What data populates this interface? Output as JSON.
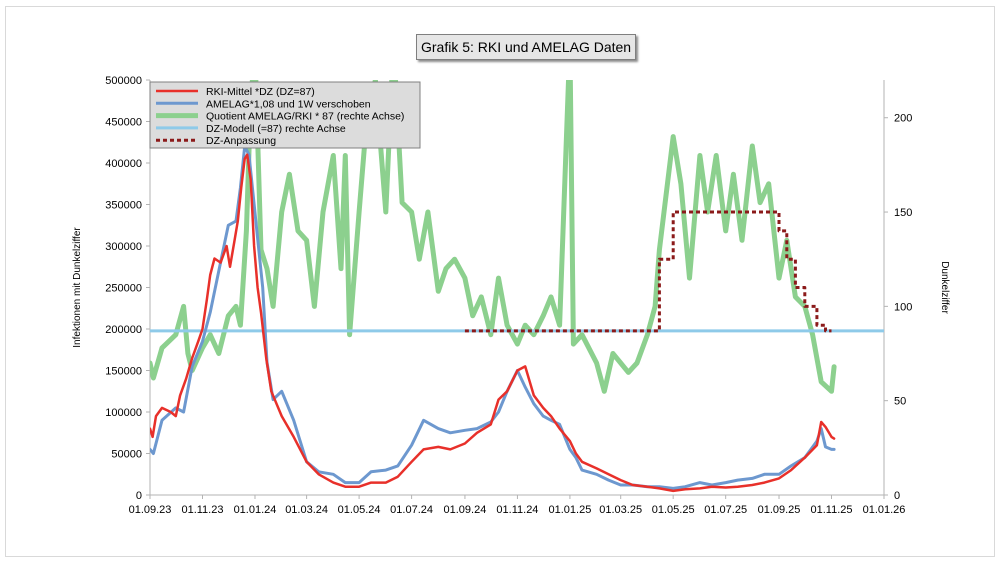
{
  "chart_data": {
    "type": "line",
    "title": "Grafik 5: RKI und AMELAG Daten",
    "ylabel": "Infektionen  mit Dunkelziffer",
    "y2label": "Dunkelziffer",
    "ylim": [
      0,
      500000
    ],
    "y2lim": [
      0,
      220
    ],
    "y_ticks": [
      "0",
      "50000",
      "100000",
      "150000",
      "200000",
      "250000",
      "300000",
      "350000",
      "400000",
      "450000",
      "500000"
    ],
    "y2_ticks": [
      "0",
      "50",
      "100",
      "150",
      "200"
    ],
    "x_ticks": [
      "01.09.23",
      "01.11.23",
      "01.01.24",
      "01.03.24",
      "01.05.24",
      "01.07.24",
      "01.09.24",
      "01.11.24",
      "01.01.25",
      "01.03.25",
      "01.05.25",
      "01.07.25",
      "01.09.25",
      "01.11.25",
      "01.01.26"
    ],
    "xlim": [
      "01.09.23",
      "01.01.26"
    ],
    "grid": false,
    "legend_position": "top-left",
    "series": [
      {
        "name": "RKI-Mittel *DZ (DZ=87)",
        "axis": "left",
        "color": "#e8302a",
        "style": "solid",
        "points": [
          [
            "01.09.23",
            80000
          ],
          [
            "04.09.23",
            70000
          ],
          [
            "08.09.23",
            95000
          ],
          [
            "15.09.23",
            105000
          ],
          [
            "25.09.23",
            100000
          ],
          [
            "01.10.23",
            95000
          ],
          [
            "06.10.23",
            120000
          ],
          [
            "13.10.23",
            140000
          ],
          [
            "20.10.23",
            165000
          ],
          [
            "27.10.23",
            185000
          ],
          [
            "01.11.23",
            200000
          ],
          [
            "06.11.23",
            235000
          ],
          [
            "10.11.23",
            265000
          ],
          [
            "15.11.23",
            285000
          ],
          [
            "22.11.23",
            280000
          ],
          [
            "29.11.23",
            300000
          ],
          [
            "03.12.23",
            275000
          ],
          [
            "08.12.23",
            305000
          ],
          [
            "12.12.23",
            330000
          ],
          [
            "16.12.23",
            370000
          ],
          [
            "20.12.23",
            405000
          ],
          [
            "23.12.23",
            410000
          ],
          [
            "27.12.23",
            380000
          ],
          [
            "31.12.23",
            300000
          ],
          [
            "04.01.24",
            250000
          ],
          [
            "08.01.24",
            220000
          ],
          [
            "14.01.24",
            165000
          ],
          [
            "20.01.24",
            125000
          ],
          [
            "01.02.24",
            95000
          ],
          [
            "15.02.24",
            70000
          ],
          [
            "01.03.24",
            40000
          ],
          [
            "15.03.24",
            25000
          ],
          [
            "01.04.24",
            15000
          ],
          [
            "15.04.24",
            10000
          ],
          [
            "01.05.24",
            10000
          ],
          [
            "15.05.24",
            15000
          ],
          [
            "01.06.24",
            15000
          ],
          [
            "15.06.24",
            22000
          ],
          [
            "01.07.24",
            40000
          ],
          [
            "15.07.24",
            55000
          ],
          [
            "01.08.24",
            58000
          ],
          [
            "15.08.24",
            55000
          ],
          [
            "01.09.24",
            62000
          ],
          [
            "15.09.24",
            75000
          ],
          [
            "01.10.24",
            85000
          ],
          [
            "10.10.24",
            115000
          ],
          [
            "20.10.24",
            125000
          ],
          [
            "01.11.24",
            150000
          ],
          [
            "10.11.24",
            155000
          ],
          [
            "20.11.24",
            120000
          ],
          [
            "01.12.24",
            105000
          ],
          [
            "10.12.24",
            95000
          ],
          [
            "20.12.24",
            80000
          ],
          [
            "01.01.25",
            65000
          ],
          [
            "08.01.25",
            50000
          ],
          [
            "15.01.25",
            40000
          ],
          [
            "01.02.25",
            32000
          ],
          [
            "15.02.25",
            25000
          ],
          [
            "01.03.25",
            18000
          ],
          [
            "15.03.25",
            12000
          ],
          [
            "01.04.25",
            10000
          ],
          [
            "15.04.25",
            8000
          ],
          [
            "01.05.25",
            5000
          ],
          [
            "15.05.25",
            7000
          ],
          [
            "01.06.25",
            8000
          ],
          [
            "15.06.25",
            10000
          ],
          [
            "01.07.25",
            9000
          ],
          [
            "15.07.25",
            10000
          ],
          [
            "01.08.25",
            12000
          ],
          [
            "15.08.25",
            15000
          ],
          [
            "01.09.25",
            20000
          ],
          [
            "15.09.25",
            30000
          ],
          [
            "01.10.25",
            45000
          ],
          [
            "15.10.25",
            60000
          ],
          [
            "20.10.25",
            88000
          ],
          [
            "25.10.25",
            82000
          ],
          [
            "01.11.25",
            70000
          ],
          [
            "04.11.25",
            68000
          ]
        ]
      },
      {
        "name": "AMELAG*1,08 und 1W verschoben",
        "axis": "left",
        "color": "#6d98cf",
        "style": "solid",
        "points": [
          [
            "01.09.23",
            55000
          ],
          [
            "05.09.23",
            50000
          ],
          [
            "15.09.23",
            90000
          ],
          [
            "01.10.23",
            105000
          ],
          [
            "10.10.23",
            100000
          ],
          [
            "20.10.23",
            155000
          ],
          [
            "01.11.23",
            185000
          ],
          [
            "10.11.23",
            220000
          ],
          [
            "20.11.23",
            270000
          ],
          [
            "01.12.23",
            325000
          ],
          [
            "10.12.23",
            330000
          ],
          [
            "15.12.23",
            370000
          ],
          [
            "20.12.23",
            420000
          ],
          [
            "25.12.23",
            410000
          ],
          [
            "01.01.24",
            340000
          ],
          [
            "05.01.24",
            300000
          ],
          [
            "10.01.24",
            250000
          ],
          [
            "15.01.24",
            160000
          ],
          [
            "22.01.24",
            115000
          ],
          [
            "01.02.24",
            125000
          ],
          [
            "15.02.24",
            90000
          ],
          [
            "01.03.24",
            40000
          ],
          [
            "15.03.24",
            28000
          ],
          [
            "01.04.24",
            25000
          ],
          [
            "15.04.24",
            15000
          ],
          [
            "01.05.24",
            15000
          ],
          [
            "15.05.24",
            28000
          ],
          [
            "01.06.24",
            30000
          ],
          [
            "15.06.24",
            35000
          ],
          [
            "01.07.24",
            60000
          ],
          [
            "15.07.24",
            90000
          ],
          [
            "01.08.24",
            80000
          ],
          [
            "15.08.24",
            75000
          ],
          [
            "01.09.24",
            78000
          ],
          [
            "15.09.24",
            80000
          ],
          [
            "01.10.24",
            88000
          ],
          [
            "10.10.24",
            100000
          ],
          [
            "20.10.24",
            125000
          ],
          [
            "01.11.24",
            150000
          ],
          [
            "10.11.24",
            130000
          ],
          [
            "20.11.24",
            110000
          ],
          [
            "01.12.24",
            95000
          ],
          [
            "10.12.24",
            90000
          ],
          [
            "20.12.24",
            85000
          ],
          [
            "01.01.25",
            55000
          ],
          [
            "08.01.25",
            45000
          ],
          [
            "15.01.25",
            30000
          ],
          [
            "01.02.25",
            25000
          ],
          [
            "15.02.25",
            18000
          ],
          [
            "01.03.25",
            12000
          ],
          [
            "15.03.25",
            12000
          ],
          [
            "01.04.25",
            10000
          ],
          [
            "15.04.25",
            10000
          ],
          [
            "01.05.25",
            8000
          ],
          [
            "15.05.25",
            10000
          ],
          [
            "01.06.25",
            15000
          ],
          [
            "15.06.25",
            12000
          ],
          [
            "01.07.25",
            15000
          ],
          [
            "15.07.25",
            18000
          ],
          [
            "01.08.25",
            20000
          ],
          [
            "15.08.25",
            25000
          ],
          [
            "01.09.25",
            25000
          ],
          [
            "15.09.25",
            35000
          ],
          [
            "01.10.25",
            45000
          ],
          [
            "15.10.25",
            65000
          ],
          [
            "20.10.25",
            80000
          ],
          [
            "25.10.25",
            58000
          ],
          [
            "01.11.25",
            55000
          ],
          [
            "04.11.25",
            55000
          ]
        ]
      },
      {
        "name": "Quotient AMELAG/RKI * 87 (rechte Achse)",
        "axis": "right",
        "color": "#8cd08e",
        "style": "solid",
        "points": [
          [
            "01.09.23",
            70
          ],
          [
            "05.09.23",
            62
          ],
          [
            "15.09.23",
            78
          ],
          [
            "01.10.23",
            85
          ],
          [
            "10.10.23",
            100
          ],
          [
            "15.10.23",
            75
          ],
          [
            "20.10.23",
            66
          ],
          [
            "01.11.23",
            78
          ],
          [
            "10.11.23",
            85
          ],
          [
            "20.11.23",
            75
          ],
          [
            "01.12.23",
            95
          ],
          [
            "10.12.23",
            100
          ],
          [
            "15.12.23",
            90
          ],
          [
            "22.12.23",
            140
          ],
          [
            "27.12.23",
            210
          ],
          [
            "01.01.24",
            235
          ],
          [
            "08.01.24",
            130
          ],
          [
            "15.01.24",
            120
          ],
          [
            "22.01.24",
            100
          ],
          [
            "01.02.24",
            150
          ],
          [
            "10.02.24",
            170
          ],
          [
            "20.02.24",
            140
          ],
          [
            "01.03.24",
            135
          ],
          [
            "10.03.24",
            100
          ],
          [
            "20.03.24",
            150
          ],
          [
            "01.04.24",
            180
          ],
          [
            "10.04.24",
            120
          ],
          [
            "15.04.24",
            180
          ],
          [
            "20.04.24",
            85
          ],
          [
            "01.05.24",
            150
          ],
          [
            "10.05.24",
            200
          ],
          [
            "20.05.24",
            220
          ],
          [
            "01.06.24",
            150
          ],
          [
            "10.06.24",
            240
          ],
          [
            "20.06.24",
            155
          ],
          [
            "01.07.24",
            150
          ],
          [
            "10.07.24",
            125
          ],
          [
            "20.07.24",
            150
          ],
          [
            "01.08.24",
            108
          ],
          [
            "10.08.24",
            120
          ],
          [
            "20.08.24",
            125
          ],
          [
            "01.09.24",
            115
          ],
          [
            "10.09.24",
            95
          ],
          [
            "20.09.24",
            105
          ],
          [
            "01.10.24",
            85
          ],
          [
            "10.10.24",
            115
          ],
          [
            "20.10.24",
            90
          ],
          [
            "01.11.24",
            80
          ],
          [
            "10.11.24",
            90
          ],
          [
            "20.11.24",
            85
          ],
          [
            "01.12.24",
            95
          ],
          [
            "10.12.24",
            105
          ],
          [
            "20.12.24",
            90
          ],
          [
            "01.01.25",
            240
          ],
          [
            "05.01.25",
            80
          ],
          [
            "15.01.25",
            85
          ],
          [
            "01.02.25",
            70
          ],
          [
            "10.02.25",
            55
          ],
          [
            "20.02.25",
            75
          ],
          [
            "01.03.25",
            70
          ],
          [
            "10.03.25",
            65
          ],
          [
            "20.03.25",
            70
          ],
          [
            "01.04.25",
            85
          ],
          [
            "10.04.25",
            100
          ],
          [
            "15.04.25",
            130
          ],
          [
            "01.05.25",
            190
          ],
          [
            "10.05.25",
            165
          ],
          [
            "20.05.25",
            115
          ],
          [
            "01.06.25",
            180
          ],
          [
            "10.06.25",
            150
          ],
          [
            "20.06.25",
            180
          ],
          [
            "01.07.25",
            140
          ],
          [
            "10.07.25",
            170
          ],
          [
            "20.07.25",
            135
          ],
          [
            "01.08.25",
            185
          ],
          [
            "10.08.25",
            155
          ],
          [
            "20.08.25",
            165
          ],
          [
            "01.09.25",
            115
          ],
          [
            "10.09.25",
            135
          ],
          [
            "20.09.25",
            105
          ],
          [
            "01.10.25",
            100
          ],
          [
            "10.10.25",
            85
          ],
          [
            "20.10.25",
            60
          ],
          [
            "01.11.25",
            55
          ],
          [
            "04.11.25",
            68
          ]
        ]
      },
      {
        "name": "DZ-Modell (=87) rechte Achse",
        "axis": "right",
        "color": "#8ecae9",
        "style": "solid",
        "points": [
          [
            "01.09.23",
            87
          ],
          [
            "15.09.23",
            87
          ],
          [
            "01.01.26",
            87
          ]
        ]
      },
      {
        "name": "DZ-Anpassung",
        "axis": "right",
        "color": "#8b1a1a",
        "style": "dashed",
        "points": [
          [
            "01.09.24",
            87
          ],
          [
            "15.04.25",
            87
          ],
          [
            "15.04.25",
            125
          ],
          [
            "01.05.25",
            125
          ],
          [
            "01.05.25",
            150
          ],
          [
            "01.09.25",
            150
          ],
          [
            "01.09.25",
            140
          ],
          [
            "10.09.25",
            140
          ],
          [
            "10.09.25",
            125
          ],
          [
            "20.09.25",
            125
          ],
          [
            "20.09.25",
            110
          ],
          [
            "01.10.25",
            110
          ],
          [
            "01.10.25",
            100
          ],
          [
            "15.10.25",
            100
          ],
          [
            "15.10.25",
            90
          ],
          [
            "25.10.25",
            90
          ],
          [
            "25.10.25",
            87
          ],
          [
            "01.11.25",
            87
          ]
        ]
      }
    ]
  }
}
